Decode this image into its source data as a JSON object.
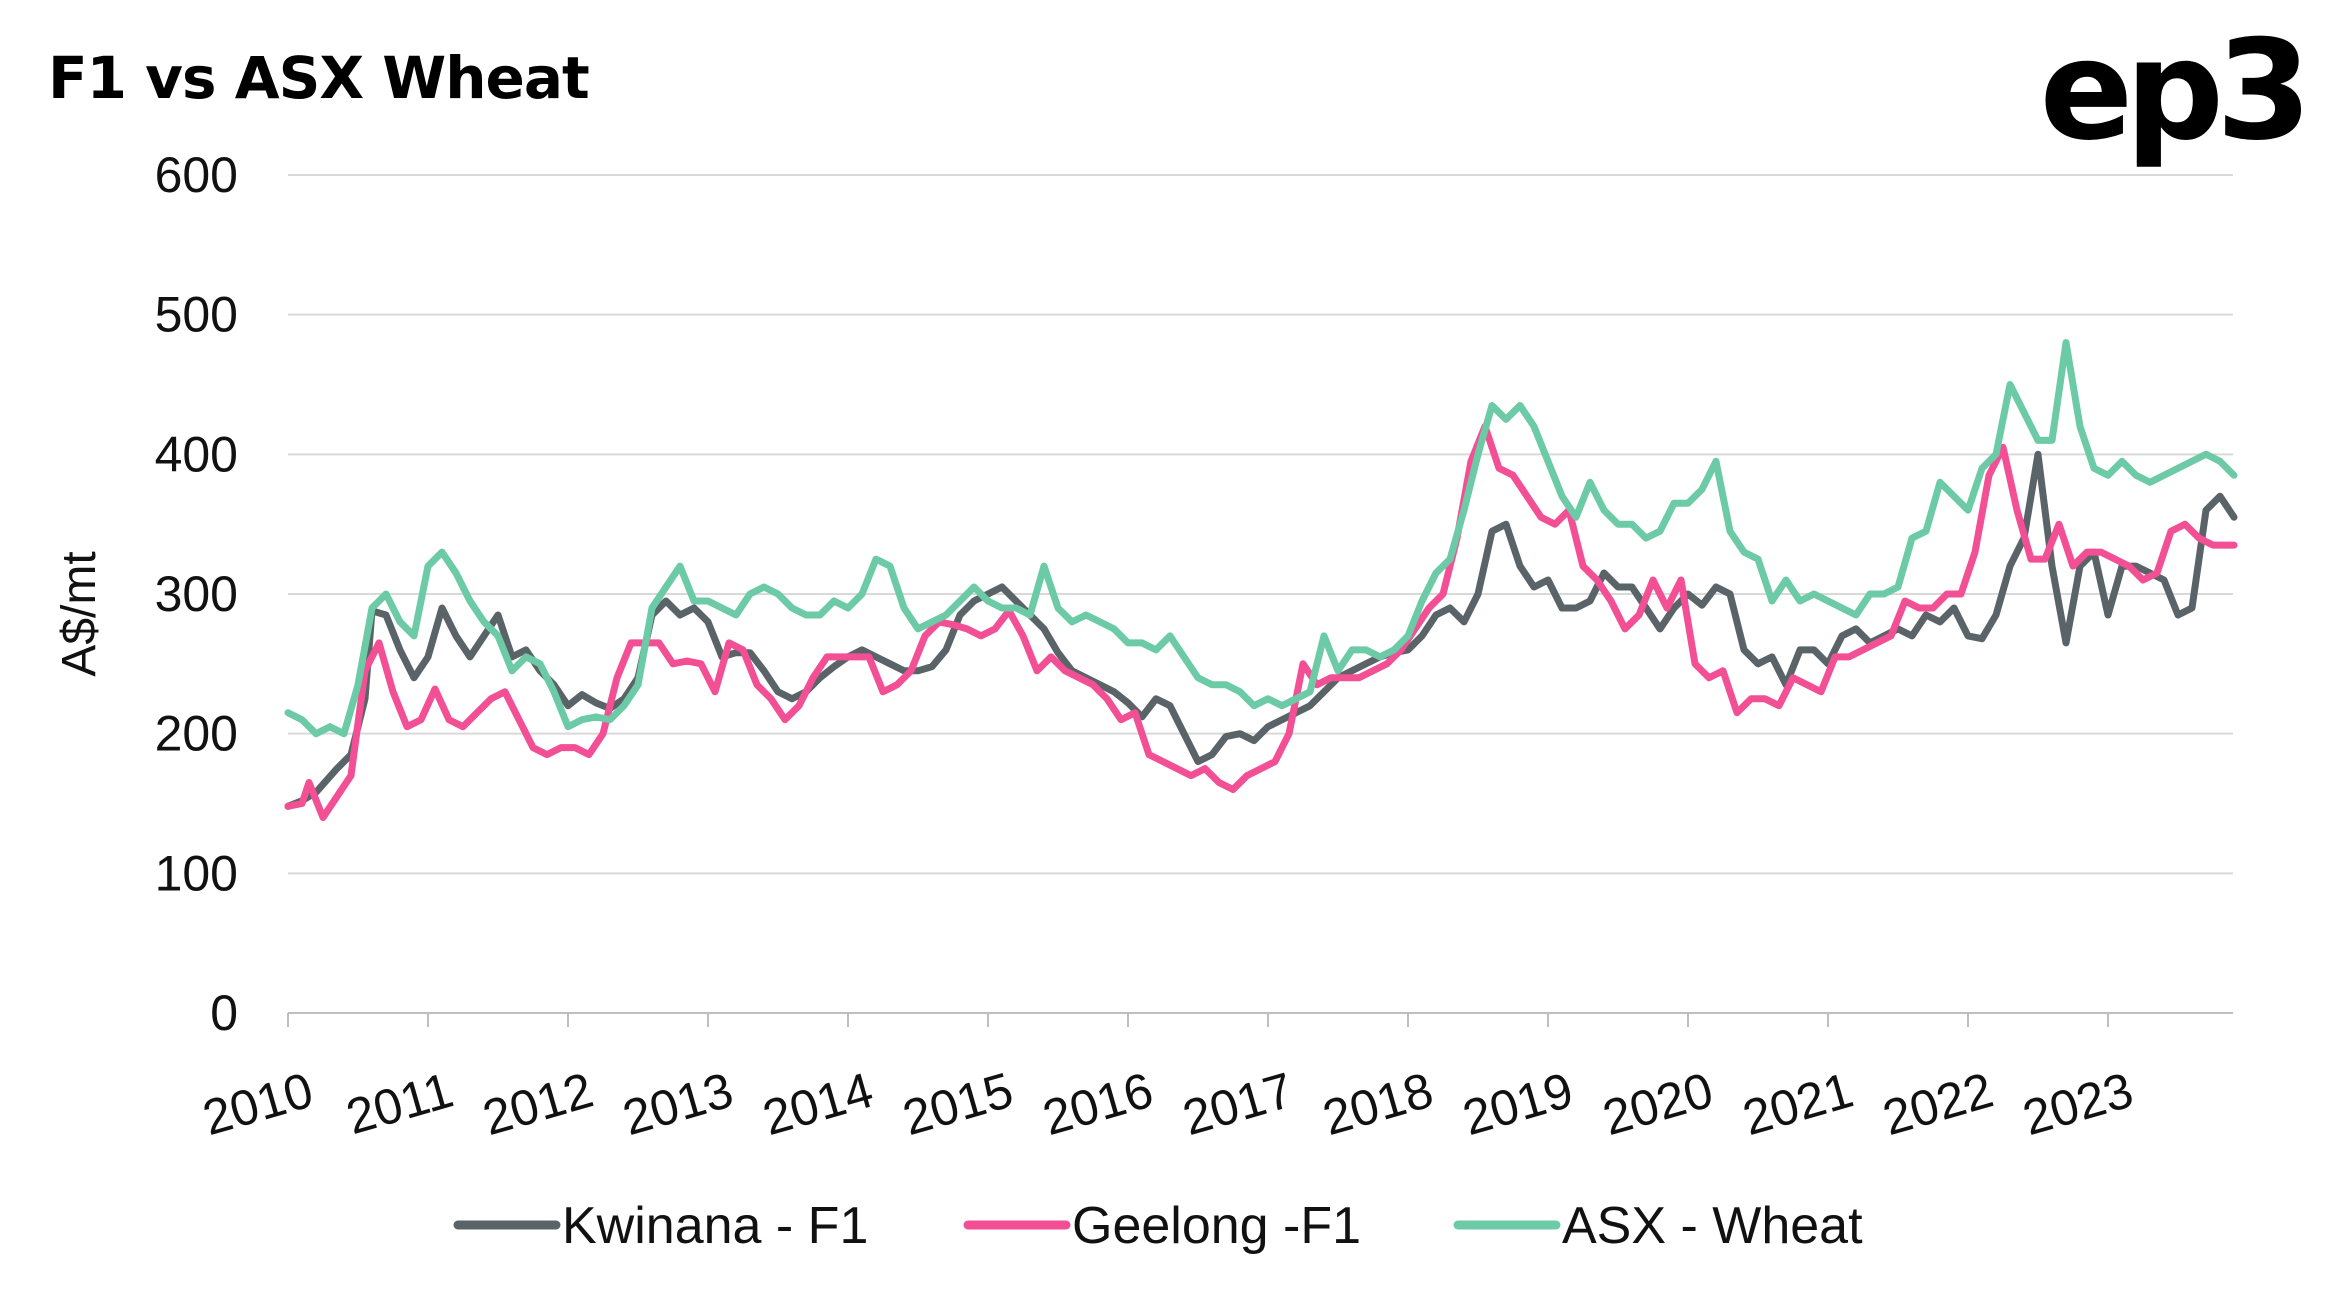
{
  "header": {
    "title": "F1 vs ASX Wheat",
    "logo_text": "ep3"
  },
  "chart_data": {
    "type": "line",
    "title": "F1 vs ASX Wheat",
    "ylabel": "A$/mt",
    "xlabel": "",
    "ylim": [
      0,
      600
    ],
    "yticks": [
      0,
      100,
      200,
      300,
      400,
      500,
      600
    ],
    "xlim": [
      2010.0,
      2023.9
    ],
    "xticks": [
      "2010",
      "2011",
      "2012",
      "2013",
      "2014",
      "2015",
      "2016",
      "2017",
      "2018",
      "2019",
      "2020",
      "2021",
      "2022",
      "2023"
    ],
    "grid": "horizontal",
    "legend_position": "bottom",
    "series": [
      {
        "name": "Kwinana - F1",
        "color": "#5a6468",
        "x": [
          2010.0,
          2010.1,
          2010.2,
          2010.35,
          2010.45,
          2010.55,
          2010.6,
          2010.7,
          2010.8,
          2010.9,
          2011.0,
          2011.1,
          2011.2,
          2011.3,
          2011.4,
          2011.5,
          2011.6,
          2011.7,
          2011.8,
          2011.9,
          2012.0,
          2012.1,
          2012.2,
          2012.3,
          2012.4,
          2012.5,
          2012.6,
          2012.7,
          2012.8,
          2012.9,
          2013.0,
          2013.1,
          2013.2,
          2013.3,
          2013.4,
          2013.5,
          2013.6,
          2013.7,
          2013.8,
          2013.9,
          2014.0,
          2014.1,
          2014.2,
          2014.3,
          2014.4,
          2014.5,
          2014.6,
          2014.7,
          2014.8,
          2014.9,
          2015.0,
          2015.1,
          2015.2,
          2015.3,
          2015.4,
          2015.5,
          2015.6,
          2015.7,
          2015.8,
          2015.9,
          2016.0,
          2016.1,
          2016.2,
          2016.3,
          2016.4,
          2016.5,
          2016.6,
          2016.7,
          2016.8,
          2016.9,
          2017.0,
          2017.1,
          2017.2,
          2017.3,
          2017.4,
          2017.5,
          2017.6,
          2017.7,
          2017.8,
          2017.9,
          2018.0,
          2018.1,
          2018.2,
          2018.3,
          2018.4,
          2018.5,
          2018.6,
          2018.7,
          2018.8,
          2018.9,
          2019.0,
          2019.1,
          2019.2,
          2019.3,
          2019.4,
          2019.5,
          2019.6,
          2019.7,
          2019.8,
          2019.9,
          2020.0,
          2020.1,
          2020.2,
          2020.3,
          2020.4,
          2020.5,
          2020.6,
          2020.7,
          2020.8,
          2020.9,
          2021.0,
          2021.1,
          2021.2,
          2021.3,
          2021.4,
          2021.5,
          2021.6,
          2021.7,
          2021.8,
          2021.9,
          2022.0,
          2022.1,
          2022.2,
          2022.3,
          2022.4,
          2022.5,
          2022.6,
          2022.7,
          2022.8,
          2022.9,
          2023.0,
          2023.1,
          2023.2,
          2023.3,
          2023.4,
          2023.5,
          2023.6,
          2023.7,
          2023.8,
          2023.9
        ],
        "values": [
          148,
          152,
          158,
          175,
          185,
          225,
          288,
          285,
          260,
          240,
          255,
          290,
          270,
          255,
          270,
          285,
          255,
          260,
          245,
          235,
          220,
          228,
          222,
          218,
          225,
          240,
          285,
          295,
          285,
          290,
          280,
          255,
          258,
          258,
          245,
          230,
          225,
          230,
          240,
          248,
          255,
          260,
          255,
          250,
          245,
          245,
          248,
          260,
          285,
          295,
          300,
          305,
          295,
          285,
          275,
          258,
          245,
          240,
          235,
          230,
          222,
          212,
          225,
          220,
          200,
          180,
          185,
          198,
          200,
          195,
          205,
          210,
          215,
          220,
          230,
          240,
          245,
          250,
          255,
          258,
          260,
          270,
          285,
          290,
          280,
          300,
          345,
          350,
          320,
          305,
          310,
          290,
          290,
          295,
          315,
          305,
          305,
          290,
          275,
          290,
          300,
          292,
          305,
          300,
          260,
          250,
          255,
          235,
          260,
          260,
          250,
          270,
          275,
          265,
          270,
          275,
          270,
          285,
          280,
          290,
          270,
          268,
          285,
          320,
          340,
          400,
          320,
          265,
          320,
          330,
          285,
          320,
          320,
          315,
          310,
          285,
          290,
          360,
          370,
          355
        ]
      },
      {
        "name": "Geelong -F1",
        "color": "#f24f94",
        "x": [
          2010.0,
          2010.1,
          2010.15,
          2010.25,
          2010.35,
          2010.45,
          2010.55,
          2010.65,
          2010.75,
          2010.85,
          2010.95,
          2011.05,
          2011.15,
          2011.25,
          2011.35,
          2011.45,
          2011.55,
          2011.65,
          2011.75,
          2011.85,
          2011.95,
          2012.05,
          2012.15,
          2012.25,
          2012.35,
          2012.45,
          2012.55,
          2012.65,
          2012.75,
          2012.85,
          2012.95,
          2013.05,
          2013.15,
          2013.25,
          2013.35,
          2013.45,
          2013.55,
          2013.65,
          2013.75,
          2013.85,
          2013.95,
          2014.05,
          2014.15,
          2014.25,
          2014.35,
          2014.45,
          2014.55,
          2014.65,
          2014.75,
          2014.85,
          2014.95,
          2015.05,
          2015.15,
          2015.25,
          2015.35,
          2015.45,
          2015.55,
          2015.65,
          2015.75,
          2015.85,
          2015.95,
          2016.05,
          2016.15,
          2016.25,
          2016.35,
          2016.45,
          2016.55,
          2016.65,
          2016.75,
          2016.85,
          2016.95,
          2017.05,
          2017.15,
          2017.25,
          2017.35,
          2017.45,
          2017.55,
          2017.65,
          2017.75,
          2017.85,
          2017.95,
          2018.05,
          2018.15,
          2018.25,
          2018.35,
          2018.45,
          2018.55,
          2018.65,
          2018.75,
          2018.85,
          2018.95,
          2019.05,
          2019.15,
          2019.25,
          2019.35,
          2019.45,
          2019.55,
          2019.65,
          2019.75,
          2019.85,
          2019.95,
          2020.05,
          2020.15,
          2020.25,
          2020.35,
          2020.45,
          2020.55,
          2020.65,
          2020.75,
          2020.85,
          2020.95,
          2021.05,
          2021.15,
          2021.25,
          2021.35,
          2021.45,
          2021.55,
          2021.65,
          2021.75,
          2021.85,
          2021.95,
          2022.05,
          2022.15,
          2022.25,
          2022.35,
          2022.45,
          2022.55,
          2022.65,
          2022.75,
          2022.85,
          2022.95,
          2023.05,
          2023.15,
          2023.25,
          2023.35,
          2023.45,
          2023.55,
          2023.65,
          2023.75,
          2023.9
        ],
        "values": [
          148,
          150,
          165,
          140,
          155,
          170,
          245,
          265,
          230,
          205,
          210,
          232,
          210,
          205,
          215,
          225,
          230,
          210,
          190,
          185,
          190,
          190,
          185,
          200,
          240,
          265,
          265,
          265,
          250,
          252,
          250,
          230,
          265,
          260,
          235,
          225,
          210,
          220,
          240,
          255,
          255,
          255,
          255,
          230,
          235,
          245,
          270,
          280,
          278,
          275,
          270,
          275,
          288,
          270,
          245,
          255,
          245,
          240,
          235,
          225,
          210,
          215,
          185,
          180,
          175,
          170,
          175,
          165,
          160,
          170,
          175,
          180,
          200,
          250,
          235,
          240,
          240,
          240,
          245,
          250,
          260,
          275,
          290,
          300,
          340,
          395,
          420,
          390,
          385,
          370,
          355,
          350,
          360,
          320,
          310,
          295,
          275,
          285,
          310,
          290,
          310,
          250,
          240,
          245,
          215,
          225,
          225,
          220,
          240,
          235,
          230,
          255,
          255,
          260,
          265,
          270,
          295,
          290,
          290,
          300,
          300,
          330,
          385,
          405,
          360,
          325,
          325,
          350,
          320,
          330,
          330,
          325,
          320,
          310,
          315,
          345,
          350,
          340,
          335,
          335
        ]
      },
      {
        "name": "ASX - Wheat",
        "color": "#6ccba6",
        "x": [
          2010.0,
          2010.1,
          2010.2,
          2010.3,
          2010.4,
          2010.5,
          2010.6,
          2010.7,
          2010.8,
          2010.9,
          2011.0,
          2011.1,
          2011.2,
          2011.3,
          2011.4,
          2011.5,
          2011.6,
          2011.7,
          2011.8,
          2011.9,
          2012.0,
          2012.1,
          2012.2,
          2012.3,
          2012.4,
          2012.5,
          2012.6,
          2012.7,
          2012.8,
          2012.9,
          2013.0,
          2013.1,
          2013.2,
          2013.3,
          2013.4,
          2013.5,
          2013.6,
          2013.7,
          2013.8,
          2013.9,
          2014.0,
          2014.1,
          2014.2,
          2014.3,
          2014.4,
          2014.5,
          2014.6,
          2014.7,
          2014.8,
          2014.9,
          2015.0,
          2015.1,
          2015.2,
          2015.3,
          2015.4,
          2015.5,
          2015.6,
          2015.7,
          2015.8,
          2015.9,
          2016.0,
          2016.1,
          2016.2,
          2016.3,
          2016.4,
          2016.5,
          2016.6,
          2016.7,
          2016.8,
          2016.9,
          2017.0,
          2017.1,
          2017.2,
          2017.3,
          2017.4,
          2017.5,
          2017.6,
          2017.7,
          2017.8,
          2017.9,
          2018.0,
          2018.1,
          2018.2,
          2018.3,
          2018.4,
          2018.5,
          2018.6,
          2018.7,
          2018.8,
          2018.9,
          2019.0,
          2019.1,
          2019.2,
          2019.3,
          2019.4,
          2019.5,
          2019.6,
          2019.7,
          2019.8,
          2019.9,
          2020.0,
          2020.1,
          2020.2,
          2020.3,
          2020.4,
          2020.5,
          2020.6,
          2020.7,
          2020.8,
          2020.9,
          2021.0,
          2021.1,
          2021.2,
          2021.3,
          2021.4,
          2021.5,
          2021.6,
          2021.7,
          2021.8,
          2021.9,
          2022.0,
          2022.1,
          2022.2,
          2022.3,
          2022.4,
          2022.5,
          2022.6,
          2022.7,
          2022.8,
          2022.9,
          2023.0,
          2023.1,
          2023.2,
          2023.3,
          2023.4,
          2023.5,
          2023.6,
          2023.7,
          2023.8,
          2023.9
        ],
        "values": [
          215,
          210,
          200,
          205,
          200,
          235,
          290,
          300,
          280,
          270,
          320,
          330,
          315,
          295,
          280,
          270,
          245,
          255,
          250,
          230,
          205,
          210,
          212,
          210,
          220,
          235,
          290,
          305,
          320,
          295,
          295,
          290,
          285,
          300,
          305,
          300,
          290,
          285,
          285,
          295,
          290,
          300,
          325,
          320,
          290,
          275,
          280,
          285,
          295,
          305,
          295,
          290,
          290,
          285,
          320,
          290,
          280,
          285,
          280,
          275,
          265,
          265,
          260,
          270,
          255,
          240,
          235,
          235,
          230,
          220,
          225,
          220,
          225,
          230,
          270,
          245,
          260,
          260,
          255,
          260,
          270,
          295,
          315,
          325,
          360,
          400,
          435,
          425,
          435,
          420,
          395,
          370,
          355,
          380,
          360,
          350,
          350,
          340,
          345,
          365,
          365,
          375,
          395,
          345,
          330,
          325,
          295,
          310,
          295,
          300,
          295,
          290,
          285,
          300,
          300,
          305,
          340,
          345,
          380,
          370,
          360,
          390,
          400,
          450,
          430,
          410,
          410,
          480,
          420,
          390,
          385,
          395,
          385,
          380,
          385,
          390,
          395,
          400,
          395,
          385
        ]
      }
    ]
  }
}
